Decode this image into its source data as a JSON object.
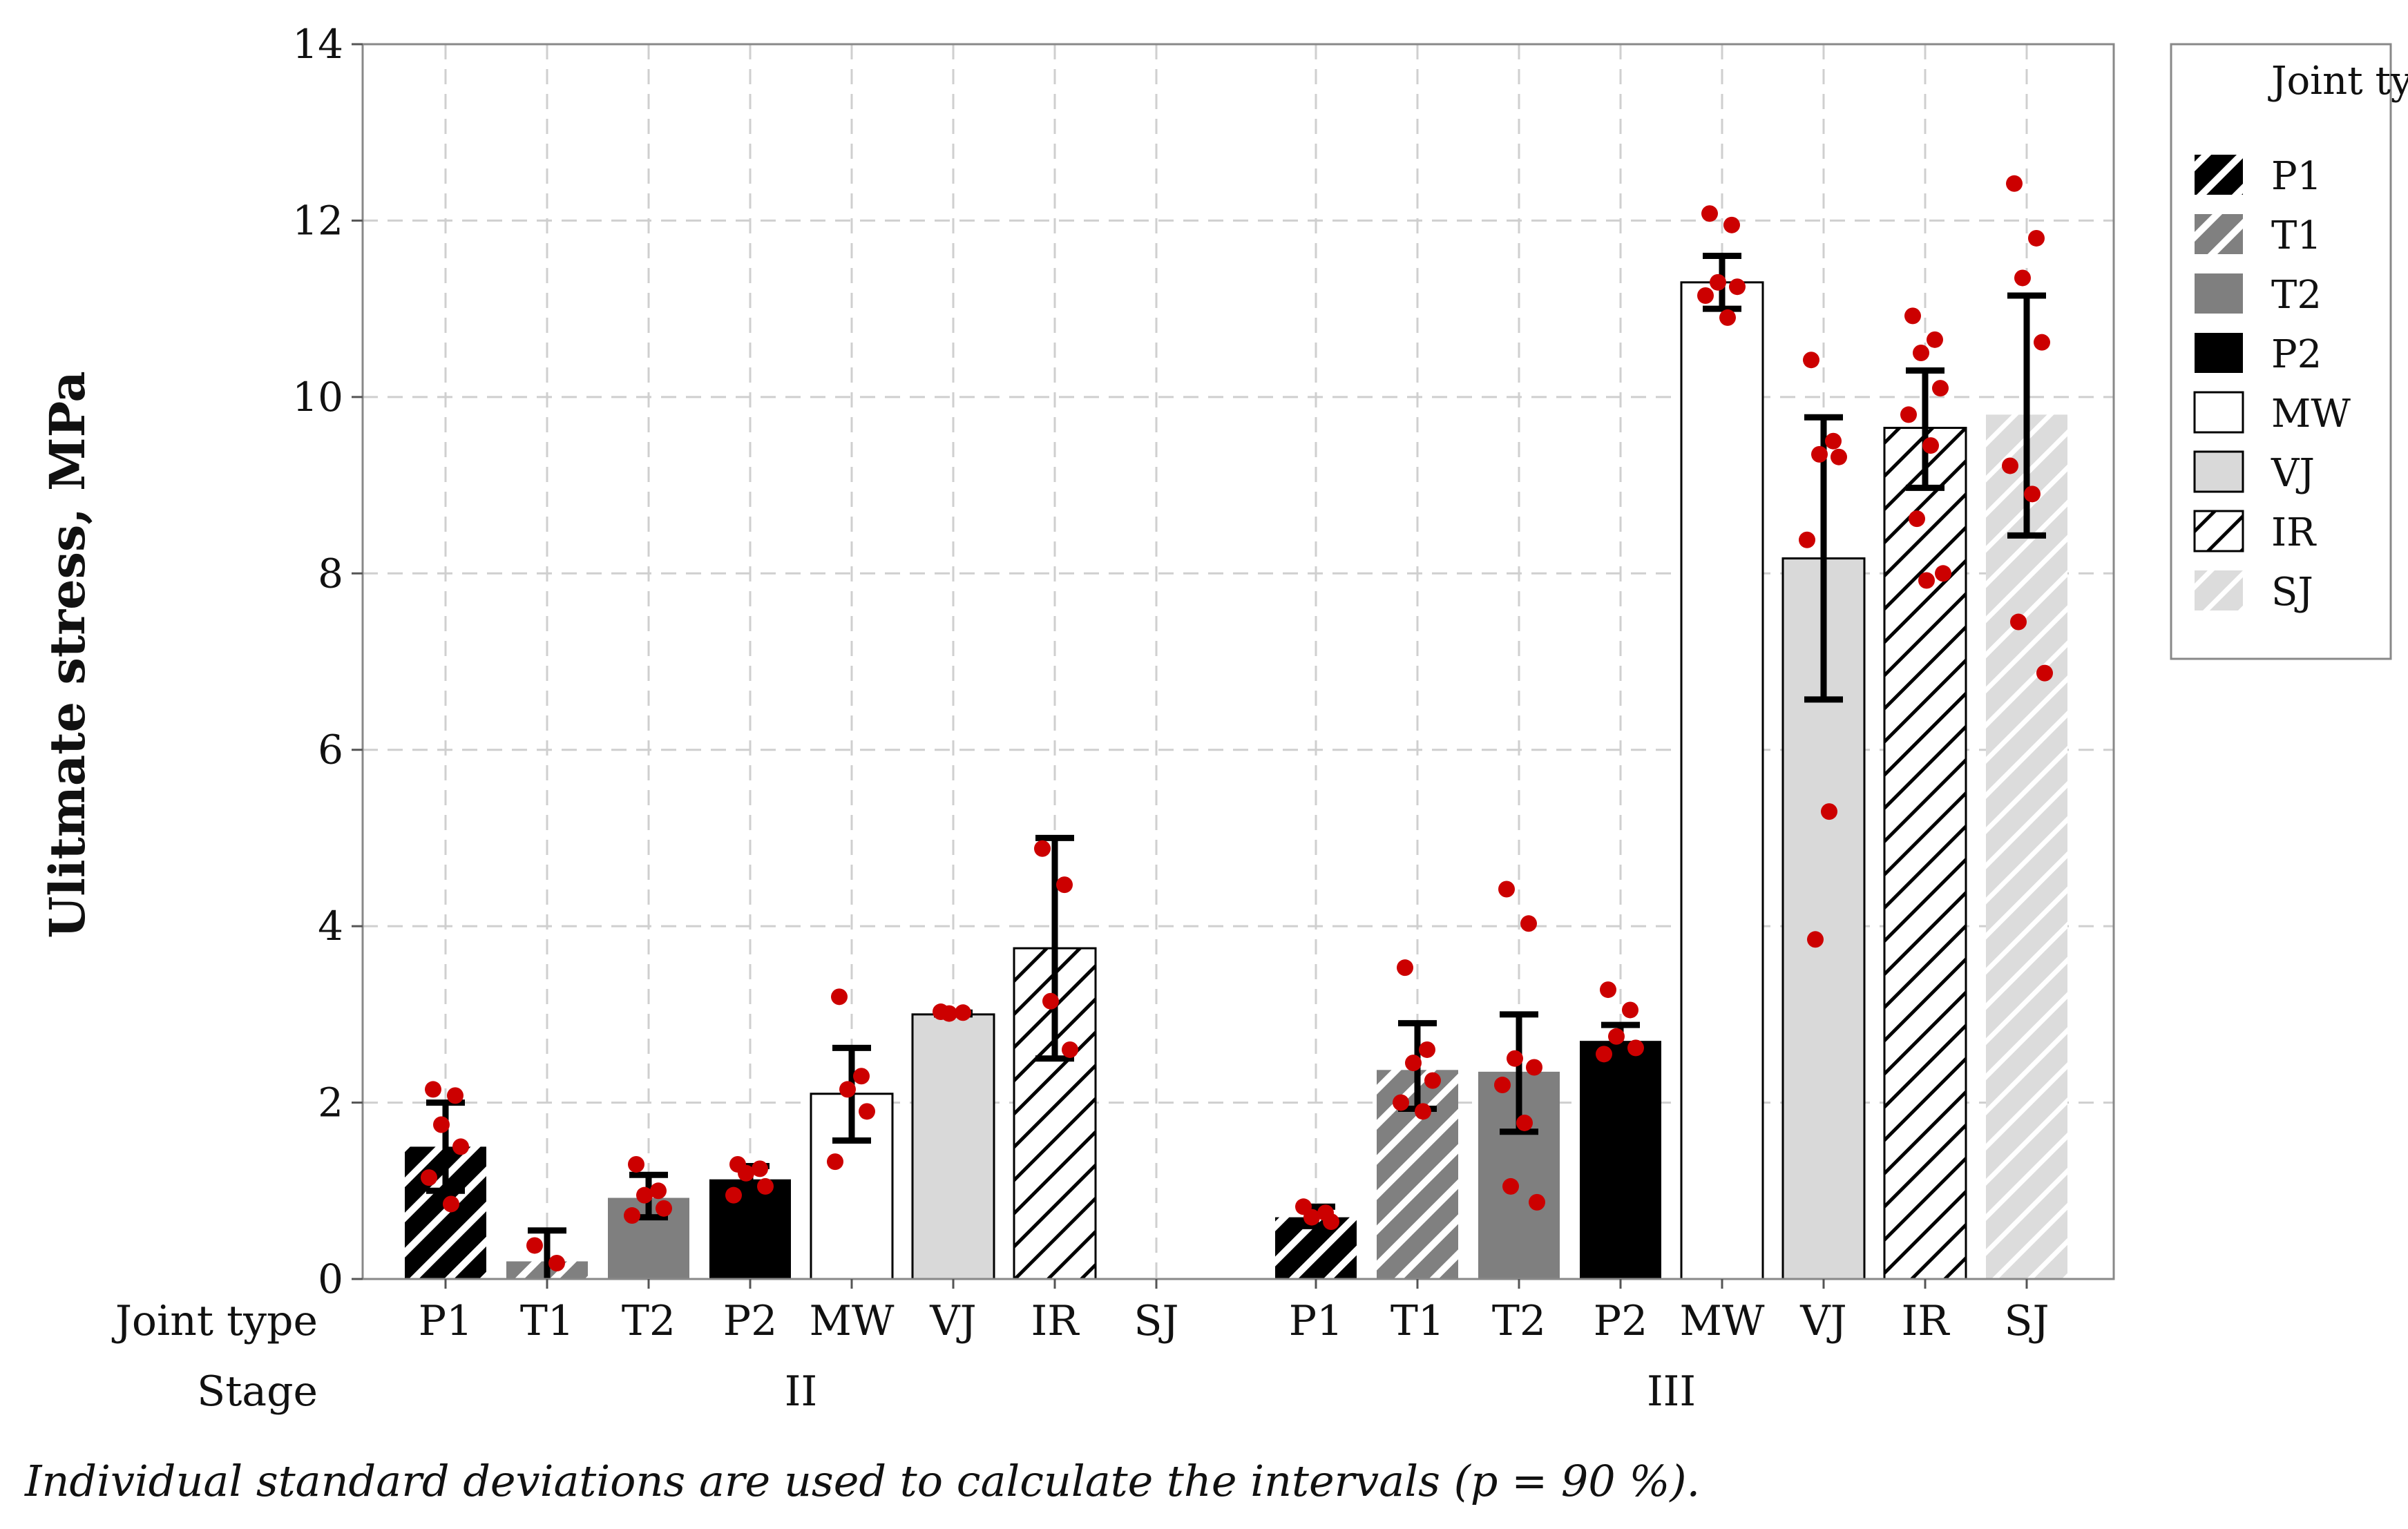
{
  "chart_data": {
    "type": "bar",
    "ylabel": "Ulitmate stress, MPa",
    "ylim": [
      0,
      14
    ],
    "yticks": [
      0,
      2,
      4,
      6,
      8,
      10,
      12,
      14
    ],
    "grid": true,
    "legend_position": "top-right, outside plot",
    "legend_title": "Joint type",
    "row_labels": {
      "joint_type": "Joint type",
      "stage": "Stage"
    },
    "footnote": "Individual standard deviations are used to calculate the intervals (p = 90 %).",
    "series_styles": [
      {
        "name": "P1",
        "fill": "#000000",
        "hatch": "white"
      },
      {
        "name": "T1",
        "fill": "#808080",
        "hatch": "white"
      },
      {
        "name": "T2",
        "fill": "#7f7f7f",
        "hatch": "none"
      },
      {
        "name": "P2",
        "fill": "#000000",
        "hatch": "none"
      },
      {
        "name": "MW",
        "fill": "#ffffff",
        "hatch": "none"
      },
      {
        "name": "VJ",
        "fill": "#d9d9d9",
        "hatch": "none"
      },
      {
        "name": "IR",
        "fill": "#ffffff",
        "hatch": "black"
      },
      {
        "name": "SJ",
        "fill": "#dcdcdc",
        "hatch": "white"
      }
    ],
    "groups": [
      {
        "stage": "II",
        "bars": [
          {
            "joint": "P1",
            "mean": 1.5,
            "ci": [
              1.0,
              2.0
            ],
            "points": [
              2.15,
              2.08,
              1.75,
              1.5,
              1.15,
              0.85
            ]
          },
          {
            "joint": "T1",
            "mean": 0.2,
            "ci": [
              -0.1,
              0.55
            ],
            "points": [
              0.38,
              0.18
            ]
          },
          {
            "joint": "T2",
            "mean": 0.92,
            "ci": [
              0.7,
              1.18
            ],
            "points": [
              1.3,
              1.0,
              0.95,
              0.8,
              0.72
            ]
          },
          {
            "joint": "P2",
            "mean": 1.13,
            "ci": [
              0.98,
              1.28
            ],
            "points": [
              1.3,
              1.25,
              1.2,
              1.05,
              0.95
            ]
          },
          {
            "joint": "MW",
            "mean": 2.1,
            "ci": [
              1.57,
              2.62
            ],
            "points": [
              3.2,
              2.3,
              2.15,
              1.9,
              1.33
            ]
          },
          {
            "joint": "VJ",
            "mean": 3.0,
            "ci": [
              3.0,
              3.02
            ],
            "points": [
              3.03,
              3.02,
              3.01
            ]
          },
          {
            "joint": "IR",
            "mean": 3.75,
            "ci": [
              2.5,
              5.0
            ],
            "points": [
              4.88,
              4.47,
              3.15,
              2.6
            ]
          },
          {
            "joint": "SJ",
            "mean": null,
            "ci": null,
            "points": []
          }
        ]
      },
      {
        "stage": "III",
        "bars": [
          {
            "joint": "P1",
            "mean": 0.7,
            "ci": [
              0.6,
              0.82
            ],
            "points": [
              0.82,
              0.75,
              0.7,
              0.65
            ]
          },
          {
            "joint": "T1",
            "mean": 2.37,
            "ci": [
              1.93,
              2.9
            ],
            "points": [
              3.53,
              2.6,
              2.45,
              2.25,
              2.0,
              1.9
            ]
          },
          {
            "joint": "T2",
            "mean": 2.35,
            "ci": [
              1.67,
              3.0
            ],
            "points": [
              4.42,
              4.03,
              2.5,
              2.4,
              2.2,
              1.77,
              1.05,
              0.87
            ]
          },
          {
            "joint": "P2",
            "mean": 2.7,
            "ci": [
              2.53,
              2.88
            ],
            "points": [
              3.28,
              3.05,
              2.75,
              2.62,
              2.55
            ]
          },
          {
            "joint": "MW",
            "mean": 11.3,
            "ci": [
              11.0,
              11.6
            ],
            "points": [
              12.08,
              11.95,
              11.3,
              11.25,
              11.15,
              10.9
            ]
          },
          {
            "joint": "VJ",
            "mean": 8.17,
            "ci": [
              6.57,
              9.77
            ],
            "points": [
              10.42,
              9.5,
              9.35,
              9.32,
              8.38,
              5.3,
              3.85
            ]
          },
          {
            "joint": "IR",
            "mean": 9.65,
            "ci": [
              8.97,
              10.3
            ],
            "points": [
              10.92,
              10.65,
              10.5,
              10.1,
              9.8,
              9.45,
              8.62,
              8.0,
              7.92
            ]
          },
          {
            "joint": "SJ",
            "mean": 9.8,
            "ci": [
              8.43,
              11.15
            ],
            "points": [
              12.42,
              11.8,
              11.35,
              10.62,
              9.22,
              8.9,
              7.45,
              6.87
            ]
          }
        ]
      }
    ]
  }
}
